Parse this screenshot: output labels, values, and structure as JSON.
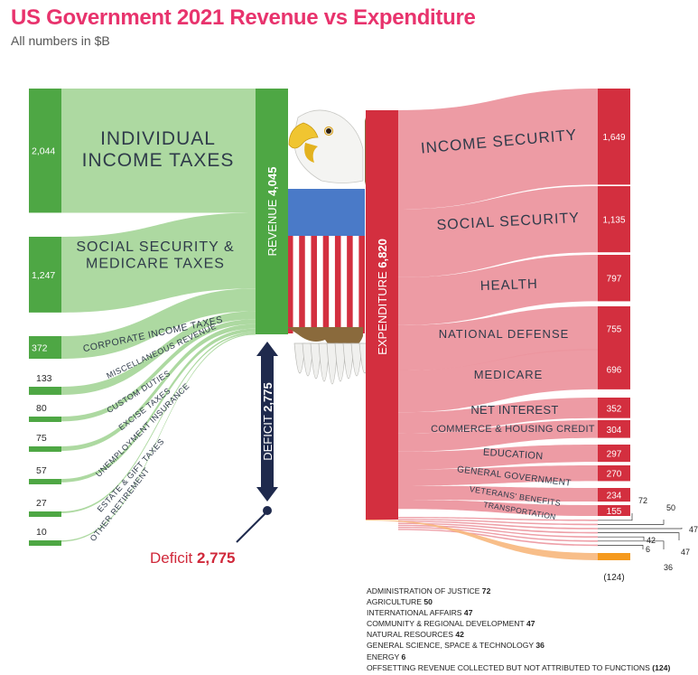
{
  "title": "US Government 2021 Revenue vs Expenditure",
  "subtitle": "All numbers in $B",
  "chart_data": {
    "type": "sankey",
    "units": "$B",
    "revenue": {
      "label": "REVENUE",
      "total": "4,045",
      "sources": [
        {
          "name": "INDIVIDUAL INCOME TAXES",
          "lines": [
            "INDIVIDUAL",
            "INCOME TAXES"
          ],
          "value": 2044,
          "value_label": "2,044"
        },
        {
          "name": "SOCIAL SECURITY & MEDICARE TAXES",
          "lines": [
            "SOCIAL SECURITY &",
            "MEDICARE TAXES"
          ],
          "value": 1247,
          "value_label": "1,247"
        },
        {
          "name": "CORPORATE INCOME TAXES",
          "lines": [
            "CORPORATE INCOME TAXES"
          ],
          "value": 372,
          "value_label": "372"
        },
        {
          "name": "MISCELLANEOUS REVENUE",
          "lines": [
            "MISCELLANEOUS REVENUE"
          ],
          "value": 133,
          "value_label": "133"
        },
        {
          "name": "CUSTOM DUTIES",
          "lines": [
            "CUSTOM DUTIES"
          ],
          "value": 80,
          "value_label": "80"
        },
        {
          "name": "EXCISE TAXES",
          "lines": [
            "EXCISE TAXES"
          ],
          "value": 75,
          "value_label": "75"
        },
        {
          "name": "UNEMPLOYMENT INSURANCE",
          "lines": [
            "UNEMPLOYMENT INSURANCE"
          ],
          "value": 57,
          "value_label": "57"
        },
        {
          "name": "ESTATE & GIFT TAXES",
          "lines": [
            "ESTATE & GIFT TAXES"
          ],
          "value": 27,
          "value_label": "27"
        },
        {
          "name": "OTHER RETIREMENT",
          "lines": [
            "OTHER RETIREMENT"
          ],
          "value": 10,
          "value_label": "10"
        }
      ]
    },
    "deficit": {
      "label": "DEFICIT",
      "value": 2775,
      "value_label": "2,775",
      "callout_label": "Deficit"
    },
    "expenditure": {
      "label": "EXPENDITURE",
      "total": "6,820",
      "items": [
        {
          "name": "INCOME SECURITY",
          "value": 1649,
          "value_label": "1,649"
        },
        {
          "name": "SOCIAL SECURITY",
          "value": 1135,
          "value_label": "1,135"
        },
        {
          "name": "HEALTH",
          "value": 797,
          "value_label": "797"
        },
        {
          "name": "NATIONAL DEFENSE",
          "value": 755,
          "value_label": "755"
        },
        {
          "name": "MEDICARE",
          "value": 696,
          "value_label": "696"
        },
        {
          "name": "NET INTEREST",
          "value": 352,
          "value_label": "352"
        },
        {
          "name": "COMMERCE & HOUSING CREDIT",
          "value": 304,
          "value_label": "304"
        },
        {
          "name": "EDUCATION",
          "value": 297,
          "value_label": "297"
        },
        {
          "name": "GENERAL GOVERNMENT",
          "value": 270,
          "value_label": "270"
        },
        {
          "name": "VETERANS' BENEFITS",
          "value": 234,
          "value_label": "234"
        },
        {
          "name": "TRANSPORTATION",
          "value": 155,
          "value_label": "155"
        }
      ],
      "small_items": [
        {
          "name": "ADMINISTRATION OF JUSTICE",
          "value": 72,
          "value_label": "72"
        },
        {
          "name": "AGRICULTURE",
          "value": 50,
          "value_label": "50"
        },
        {
          "name": "INTERNATIONAL AFFAIRS",
          "value": 47,
          "value_label": "47"
        },
        {
          "name": "COMMUNITY & REGIONAL DEVELOPMENT",
          "value": 47,
          "value_label": "47"
        },
        {
          "name": "NATURAL RESOURCES",
          "value": 42,
          "value_label": "42"
        },
        {
          "name": "GENERAL SCIENCE, SPACE & TECHNOLOGY",
          "value": 36,
          "value_label": "36"
        },
        {
          "name": "ENERGY",
          "value": 6,
          "value_label": "6"
        },
        {
          "name": "OFFSETTING REVENUE COLLECTED BUT NOT ATTRIBUTED TO FUNCTIONS",
          "value": -124,
          "value_label": "(124)"
        }
      ]
    },
    "colors": {
      "revenue_dark": "#4ea744",
      "revenue_light": "#a9d79c",
      "expense_dark": "#d32f3f",
      "expense_light": "#ec969f",
      "deficit": "#1f2a4d",
      "offset": "#f59a1e",
      "title": "#e8336d"
    }
  }
}
